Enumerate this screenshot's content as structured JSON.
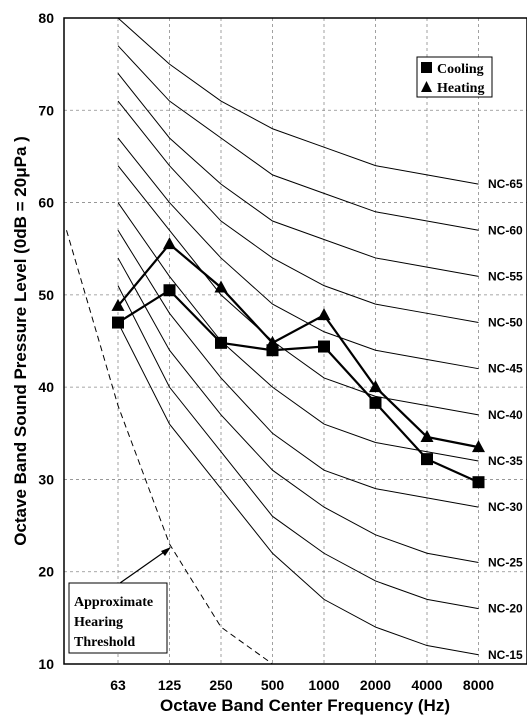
{
  "chart_data": {
    "type": "line",
    "title": "",
    "xlabel": "Octave Band Center Frequency (Hz)",
    "ylabel": "Octave Band Sound Pressure Level (0dB = 20μPa )",
    "categories": [
      "63",
      "125",
      "250",
      "500",
      "1000",
      "2000",
      "4000",
      "8000"
    ],
    "ylim": [
      10,
      80
    ],
    "yticks": [
      "10",
      "20",
      "30",
      "40",
      "50",
      "60",
      "70",
      "80"
    ],
    "grid": true,
    "legend": "top-right",
    "series": [
      {
        "name": "Cooling",
        "marker": "square",
        "values": [
          47,
          50.5,
          44.8,
          44,
          44.4,
          38.3,
          32.2,
          29.7
        ]
      },
      {
        "name": "Heating",
        "marker": "triangle",
        "values": [
          48.8,
          55.5,
          50.8,
          44.8,
          47.8,
          40,
          34.6,
          33.5
        ]
      }
    ],
    "nc_curves": [
      {
        "label": "NC-65",
        "values": [
          80,
          75,
          71,
          68,
          66,
          64,
          63,
          62
        ]
      },
      {
        "label": "NC-60",
        "values": [
          77,
          71,
          67,
          63,
          61,
          59,
          58,
          57
        ]
      },
      {
        "label": "NC-55",
        "values": [
          74,
          67,
          62,
          58,
          56,
          54,
          53,
          52
        ]
      },
      {
        "label": "NC-50",
        "values": [
          71,
          64,
          58,
          54,
          51,
          49,
          48,
          47
        ]
      },
      {
        "label": "NC-45",
        "values": [
          67,
          60,
          54,
          49,
          46,
          44,
          43,
          42
        ]
      },
      {
        "label": "NC-40",
        "values": [
          64,
          57,
          50,
          45,
          41,
          39,
          38,
          37
        ]
      },
      {
        "label": "NC-35",
        "values": [
          60,
          52,
          45,
          40,
          36,
          34,
          33,
          32
        ]
      },
      {
        "label": "NC-30",
        "values": [
          57,
          48,
          41,
          35,
          31,
          29,
          28,
          27
        ]
      },
      {
        "label": "NC-25",
        "values": [
          54,
          44,
          37,
          31,
          27,
          24,
          22,
          21
        ]
      },
      {
        "label": "NC-20",
        "values": [
          51,
          40,
          33,
          26,
          22,
          19,
          17,
          16
        ]
      },
      {
        "label": "NC-15",
        "values": [
          47,
          36,
          29,
          22,
          17,
          14,
          12,
          11
        ]
      }
    ],
    "threshold": {
      "label": "Approximate Hearing Threshold",
      "lines": [
        "Approximate",
        "Hearing",
        "Threshold"
      ],
      "points": [
        [
          -1,
          57
        ],
        [
          0,
          38
        ],
        [
          1,
          23
        ],
        [
          2,
          14
        ],
        [
          3,
          10
        ]
      ]
    }
  }
}
